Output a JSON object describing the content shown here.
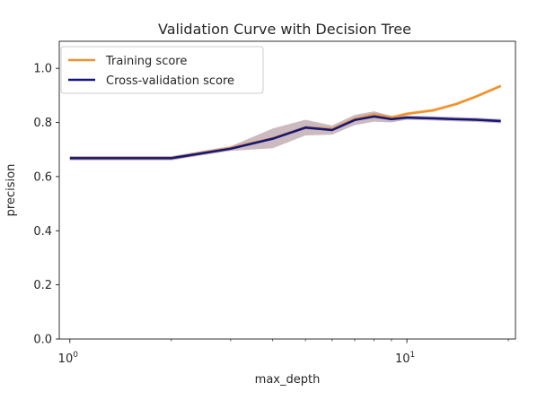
{
  "chart_data": {
    "type": "line",
    "title": "Validation Curve with Decision Tree",
    "xlabel": "max_depth",
    "ylabel": "precision",
    "xscale": "log",
    "xlim": [
      0.93,
      21
    ],
    "ylim": [
      0.0,
      1.1
    ],
    "x_major_ticks": [
      {
        "value": 1,
        "base": "10",
        "exp": "0"
      },
      {
        "value": 10,
        "base": "10",
        "exp": "1"
      }
    ],
    "x_minor_ticks": [
      2,
      3,
      4,
      5,
      6,
      7,
      8,
      9,
      20
    ],
    "y_ticks": [
      {
        "value": 0.0,
        "label": "0.0"
      },
      {
        "value": 0.2,
        "label": "0.2"
      },
      {
        "value": 0.4,
        "label": "0.4"
      },
      {
        "value": 0.6,
        "label": "0.6"
      },
      {
        "value": 0.8,
        "label": "0.8"
      },
      {
        "value": 1.0,
        "label": "1.0"
      }
    ],
    "grid": false,
    "legend_position": "top-left",
    "x": [
      1,
      2,
      3,
      4,
      5,
      6,
      7,
      8,
      9,
      10,
      12,
      14,
      16,
      19
    ],
    "series": [
      {
        "name": "Training score",
        "color": "#f0922b",
        "values": [
          0.668,
          0.668,
          0.705,
          0.742,
          0.781,
          0.775,
          0.812,
          0.828,
          0.818,
          0.832,
          0.845,
          0.868,
          0.895,
          0.935
        ],
        "band_lower": [
          0.662,
          0.662,
          0.698,
          0.738,
          0.774,
          0.768,
          0.805,
          0.821,
          0.811,
          0.826,
          0.839,
          0.862,
          0.889,
          0.929
        ],
        "band_upper": [
          0.674,
          0.674,
          0.712,
          0.746,
          0.788,
          0.782,
          0.819,
          0.835,
          0.825,
          0.838,
          0.851,
          0.874,
          0.901,
          0.941
        ]
      },
      {
        "name": "Cross-validation score",
        "color": "#12157a",
        "values": [
          0.668,
          0.668,
          0.703,
          0.74,
          0.781,
          0.772,
          0.809,
          0.822,
          0.812,
          0.818,
          0.815,
          0.812,
          0.81,
          0.805
        ],
        "band_lower": [
          0.66,
          0.66,
          0.695,
          0.705,
          0.752,
          0.755,
          0.79,
          0.803,
          0.8,
          0.81,
          0.807,
          0.804,
          0.802,
          0.797
        ],
        "band_upper": [
          0.676,
          0.676,
          0.712,
          0.778,
          0.81,
          0.789,
          0.828,
          0.841,
          0.824,
          0.826,
          0.823,
          0.82,
          0.818,
          0.813
        ],
        "band_color": "#6b3a47"
      }
    ]
  }
}
